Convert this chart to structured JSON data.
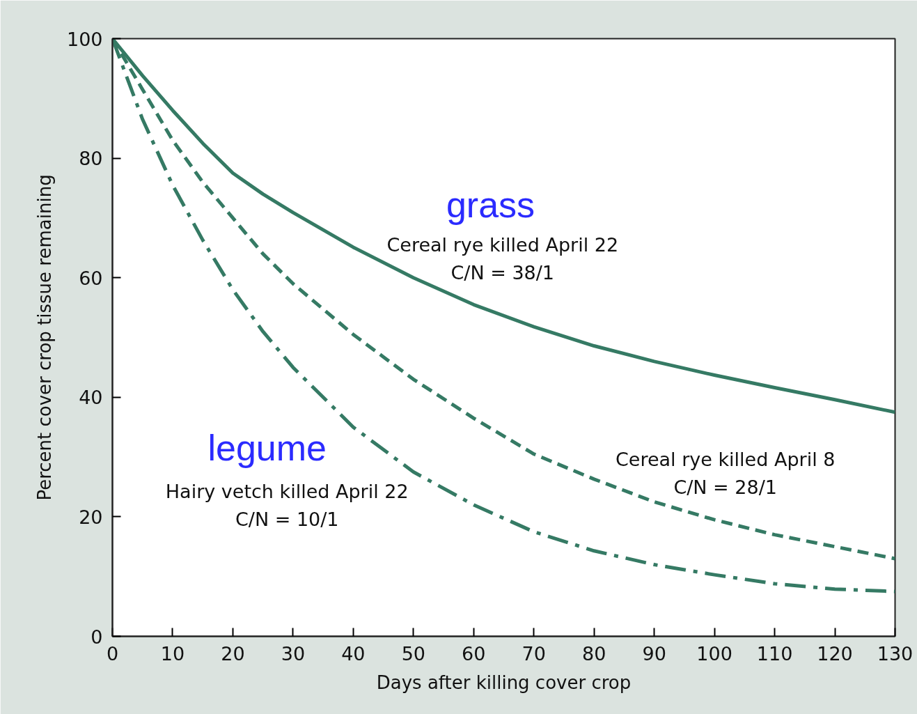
{
  "chart_data": {
    "type": "line",
    "xlabel": "Days after killing cover crop",
    "ylabel": "Percent cover crop tissue remaining",
    "xlim": [
      0,
      130
    ],
    "ylim": [
      0,
      100
    ],
    "xticks": [
      0,
      10,
      20,
      30,
      40,
      50,
      60,
      70,
      80,
      90,
      100,
      110,
      120,
      130
    ],
    "yticks": [
      0,
      20,
      40,
      60,
      80,
      100
    ],
    "x": [
      0,
      5,
      10,
      15,
      20,
      25,
      30,
      40,
      50,
      60,
      70,
      80,
      90,
      100,
      110,
      120,
      130
    ],
    "series": [
      {
        "name": "Cereal rye killed April 22\nC/N = 38/1",
        "color": "#357a64",
        "line_style": "solid",
        "values": [
          100,
          93.8,
          88,
          82.5,
          77.5,
          74,
          70.9,
          65.1,
          60,
          55.5,
          51.8,
          48.6,
          46,
          43.7,
          41.6,
          39.6,
          37.5
        ]
      },
      {
        "name": "Cereal rye killed April 8\nC/N = 28/1",
        "color": "#357a64",
        "line_style": "dashed",
        "values": [
          100,
          91.5,
          83,
          76,
          70,
          64,
          59,
          50.5,
          43,
          36.5,
          30.5,
          26.3,
          22.5,
          19.5,
          17,
          15,
          13
        ]
      },
      {
        "name": "Hairy vetch killed April 22\nC/N = 10/1",
        "color": "#357a64",
        "line_style": "dashdot",
        "values": [
          100,
          86.5,
          75.5,
          66.3,
          58,
          51,
          45,
          35,
          27.5,
          22,
          17.5,
          14.3,
          12,
          10.3,
          8.8,
          7.9,
          7.5
        ]
      }
    ],
    "annotations": [
      "grass",
      "legume"
    ]
  }
}
